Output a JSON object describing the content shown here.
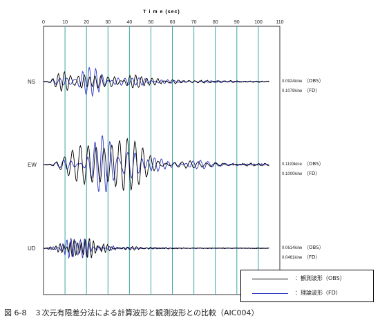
{
  "chart_data": {
    "type": "line",
    "title": "",
    "xlabel": "T i m e (sec)",
    "ylabel": "",
    "xlim": [
      0,
      110
    ],
    "xticks": [
      0,
      10,
      20,
      30,
      40,
      50,
      60,
      70,
      80,
      90,
      100,
      110
    ],
    "grid": "vertical lines at 10 sec intervals",
    "colors": {
      "obs": "#000000",
      "fd": "#2a32c4",
      "grid": "#3aa6a0"
    },
    "series": [
      {
        "name": "観測波形（OBS）"
      },
      {
        "name": "理論波形（FD）"
      }
    ],
    "components": [
      {
        "name": "NS",
        "obs_peak": "0.0924kine",
        "obs_tag": "（OBS）",
        "fd_peak": "0.1079kine",
        "fd_tag": "（FD）"
      },
      {
        "name": "EW",
        "obs_peak": "0.1193kine",
        "obs_tag": "（OBS）",
        "fd_peak": "0.1000kine",
        "fd_tag": "（FD）"
      },
      {
        "name": "UD",
        "obs_peak": "0.0614kine",
        "obs_tag": "（OBS）",
        "fd_peak": "0.0461kine",
        "fd_tag": "（FD）"
      }
    ]
  },
  "legend": {
    "obs": {
      "label": "：観測波形（OBS）",
      "color": "#000000"
    },
    "fd": {
      "label": "：理論波形（FD）",
      "color": "#2a32c4"
    }
  },
  "caption": "図 6-8　３次元有限差分法による計算波形と観測波形との比較（AIC004）"
}
